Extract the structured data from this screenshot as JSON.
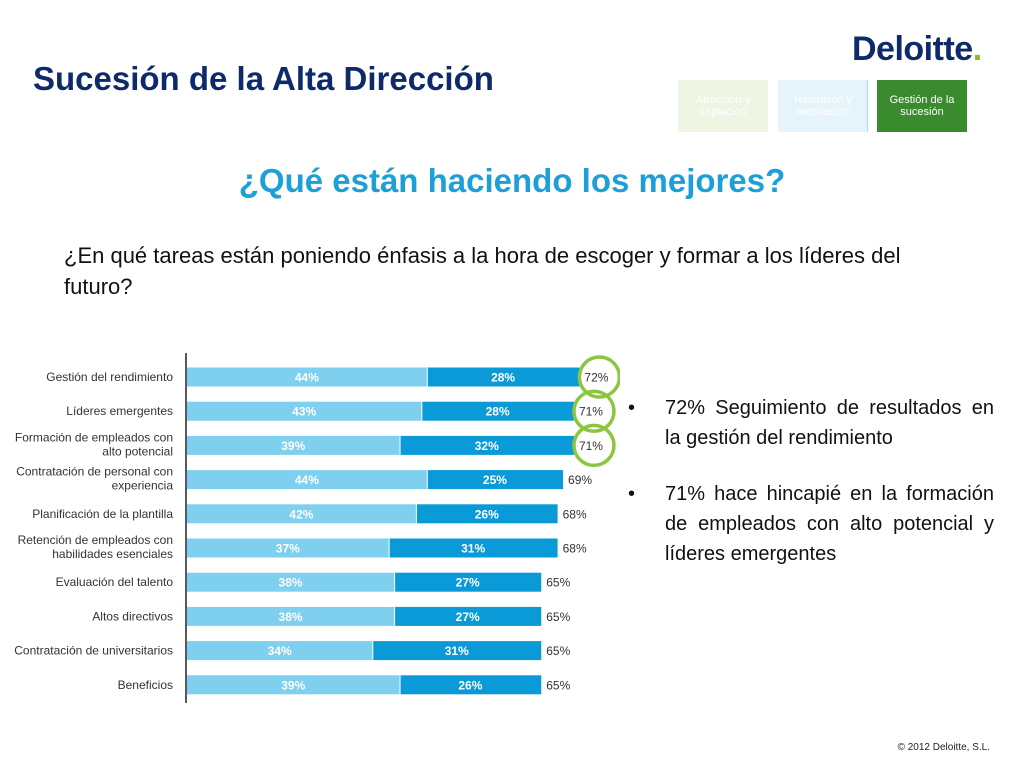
{
  "header": {
    "title": "Sucesión de la Alta Dirección",
    "logo_text": "Deloitte",
    "logo_dot": ".",
    "tabs": [
      {
        "label": "Atracción y captación",
        "active": false
      },
      {
        "label": "Retención y motivación",
        "active": false
      },
      {
        "label": "Gestión de la sucesión",
        "active": true
      }
    ]
  },
  "main": {
    "subtitle": "¿Qué están haciendo los mejores?",
    "question": "¿En qué tareas están poniendo énfasis a la hora de  escoger y formar a los líderes del futuro?",
    "bullets": [
      "72% Seguimiento de resultados en la gestión del rendimiento",
      "71% hace hincapié en la formación de empleados con alto potencial y líderes emergentes"
    ]
  },
  "footer": {
    "copyright": "© 2012 Deloitte, S.L."
  },
  "colors": {
    "title": "#0d2a6b",
    "subtitle": "#1d9fd8",
    "series_1": "#7fcfee",
    "series_2": "#0a9ad8",
    "highlight_ring": "#8cc63f",
    "accent_green": "#3a8a2e"
  },
  "chart_data": {
    "type": "bar",
    "orientation": "horizontal",
    "stacked": true,
    "categories": [
      [
        "Gestión del rendimiento"
      ],
      [
        "Líderes emergentes"
      ],
      [
        "Formación de empleados con",
        "alto potencial"
      ],
      [
        "Contratación de personal con",
        "experiencia"
      ],
      [
        "Planificación de la plantilla"
      ],
      [
        "Retención de empleados con",
        "habilidades esenciales"
      ],
      [
        "Evaluación del talento"
      ],
      [
        "Altos directivos"
      ],
      [
        "Contratación de universitarios"
      ],
      [
        "Beneficios"
      ]
    ],
    "series": [
      {
        "values": [
          44,
          43,
          39,
          44,
          42,
          37,
          38,
          38,
          34,
          39
        ],
        "labels": [
          "44%",
          "43%",
          "39%",
          "44%",
          "42%",
          "37%",
          "38%",
          "38%",
          "34%",
          "39%"
        ]
      },
      {
        "values": [
          28,
          28,
          32,
          25,
          26,
          31,
          27,
          27,
          31,
          26
        ],
        "labels": [
          "28%",
          "28%",
          "32%",
          "25%",
          "26%",
          "31%",
          "27%",
          "27%",
          "31%",
          "26%"
        ]
      }
    ],
    "totals": [
      72,
      71,
      71,
      69,
      68,
      68,
      65,
      65,
      65,
      65
    ],
    "total_labels": [
      "72%",
      "71%",
      "71%",
      "69%",
      "68%",
      "68%",
      "65%",
      "65%",
      "65%",
      "65%"
    ],
    "highlighted_totals": [
      0,
      1,
      2
    ],
    "xlim": [
      0,
      100
    ],
    "legend": "none",
    "grid": false
  }
}
